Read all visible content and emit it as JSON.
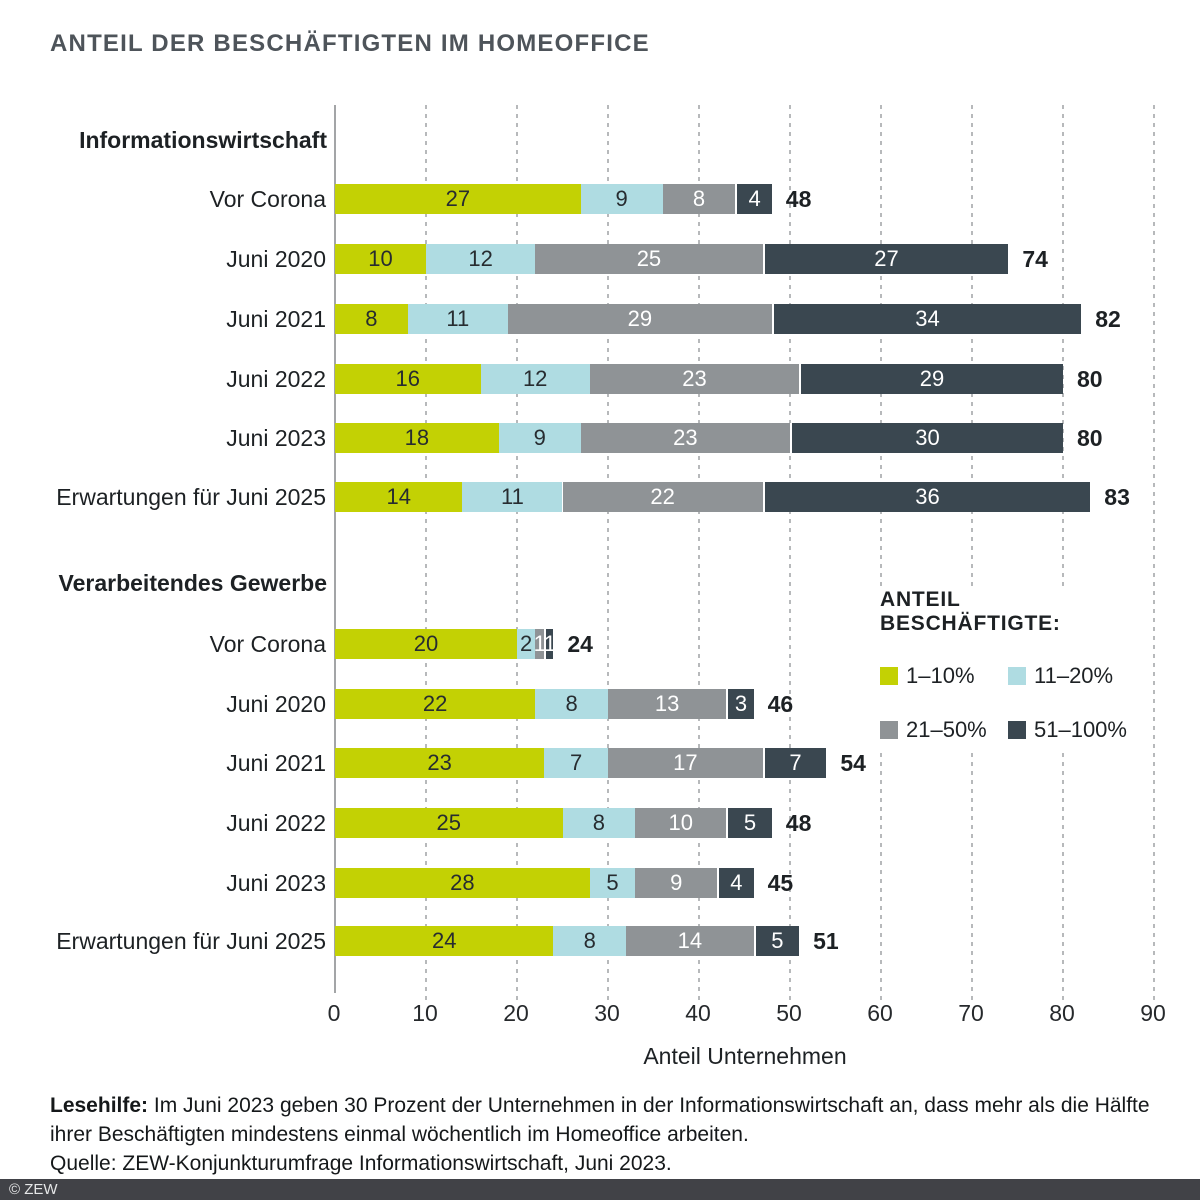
{
  "chart_data": {
    "type": "bar",
    "orientation": "horizontal",
    "stacked": true,
    "title": "ANTEIL DER BESCHÄFTIGTEN IM HOMEOFFICE",
    "xlabel": "Anteil Unternehmen",
    "xlim": [
      0,
      90
    ],
    "xticks": [
      0,
      10,
      20,
      30,
      40,
      50,
      60,
      70,
      80,
      90
    ],
    "grid": "dashed-vertical",
    "legend": {
      "title": "ANTEIL BESCHÄFTIGTE:",
      "position": "inside-right",
      "entries": [
        {
          "label": "1–10%",
          "color": "#c3d104"
        },
        {
          "label": "11–20%",
          "color": "#afdce2"
        },
        {
          "label": "21–50%",
          "color": "#8f9396"
        },
        {
          "label": "51–100%",
          "color": "#3a4750"
        }
      ]
    },
    "sections": [
      {
        "label": "Informationswirtschaft",
        "rows": [
          {
            "label": "Vor Corona",
            "values": [
              27,
              9,
              8,
              4
            ],
            "total": 48
          },
          {
            "label": "Juni 2020",
            "values": [
              10,
              12,
              25,
              27
            ],
            "total": 74
          },
          {
            "label": "Juni 2021",
            "values": [
              8,
              11,
              29,
              34
            ],
            "total": 82
          },
          {
            "label": "Juni 2022",
            "values": [
              16,
              12,
              23,
              29
            ],
            "total": 80
          },
          {
            "label": "Juni 2023",
            "values": [
              18,
              9,
              23,
              30
            ],
            "total": 80
          },
          {
            "label": "Erwartungen für Juni 2025",
            "values": [
              14,
              11,
              22,
              36
            ],
            "total": 83
          }
        ]
      },
      {
        "label": "Verarbeitendes Gewerbe",
        "rows": [
          {
            "label": "Vor Corona",
            "values": [
              20,
              2,
              1,
              1
            ],
            "total": 24
          },
          {
            "label": "Juni 2020",
            "values": [
              22,
              8,
              13,
              3
            ],
            "total": 46
          },
          {
            "label": "Juni 2021",
            "values": [
              23,
              7,
              17,
              7
            ],
            "total": 54
          },
          {
            "label": "Juni 2022",
            "values": [
              25,
              8,
              10,
              5
            ],
            "total": 48
          },
          {
            "label": "Juni 2023",
            "values": [
              28,
              5,
              9,
              4
            ],
            "total": 45
          },
          {
            "label": "Erwartungen für Juni 2025",
            "values": [
              24,
              8,
              14,
              5
            ],
            "total": 51
          }
        ]
      }
    ]
  },
  "footer": {
    "lesehilfe_label": "Lesehilfe:",
    "lesehilfe_text": " Im Juni 2023 geben 30 Prozent der Unternehmen in der Informationswirtschaft an, dass mehr als die Hälfte ihrer Beschäftigten mindestens einmal wöchentlich im Homeoffice arbeiten.",
    "quelle": "Quelle: ZEW-Konjunkturumfrage Informationswirtschaft, Juni 2023.",
    "copyright": "© ZEW"
  }
}
